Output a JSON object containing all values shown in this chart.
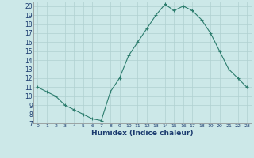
{
  "x": [
    0,
    1,
    2,
    3,
    4,
    5,
    6,
    7,
    8,
    9,
    10,
    11,
    12,
    13,
    14,
    15,
    16,
    17,
    18,
    19,
    20,
    21,
    22,
    23
  ],
  "y": [
    11,
    10.5,
    10,
    9,
    8.5,
    8,
    7.5,
    7.3,
    10.5,
    12,
    14.5,
    16,
    17.5,
    19,
    20.2,
    19.5,
    20,
    19.5,
    18.5,
    17,
    15,
    13,
    12,
    11
  ],
  "line_color": "#2d7d6e",
  "marker": "+",
  "marker_size": 3,
  "marker_lw": 0.8,
  "bg_color": "#cce8e8",
  "grid_color": "#b0d0d0",
  "xlabel": "Humidex (Indice chaleur)",
  "xlim": [
    -0.5,
    23.5
  ],
  "ylim": [
    7,
    20.5
  ],
  "yticks": [
    7,
    8,
    9,
    10,
    11,
    12,
    13,
    14,
    15,
    16,
    17,
    18,
    19,
    20
  ],
  "xticks": [
    0,
    1,
    2,
    3,
    4,
    5,
    6,
    7,
    8,
    9,
    10,
    11,
    12,
    13,
    14,
    15,
    16,
    17,
    18,
    19,
    20,
    21,
    22,
    23
  ],
  "xtick_labels": [
    "0",
    "1",
    "2",
    "3",
    "4",
    "5",
    "6",
    "7",
    "8",
    "9",
    "10",
    "11",
    "12",
    "13",
    "14",
    "15",
    "16",
    "17",
    "18",
    "19",
    "20",
    "21",
    "22",
    "23"
  ],
  "xlabel_color": "#1a3a6e",
  "tick_color": "#1a3a6e",
  "line_width": 0.8
}
